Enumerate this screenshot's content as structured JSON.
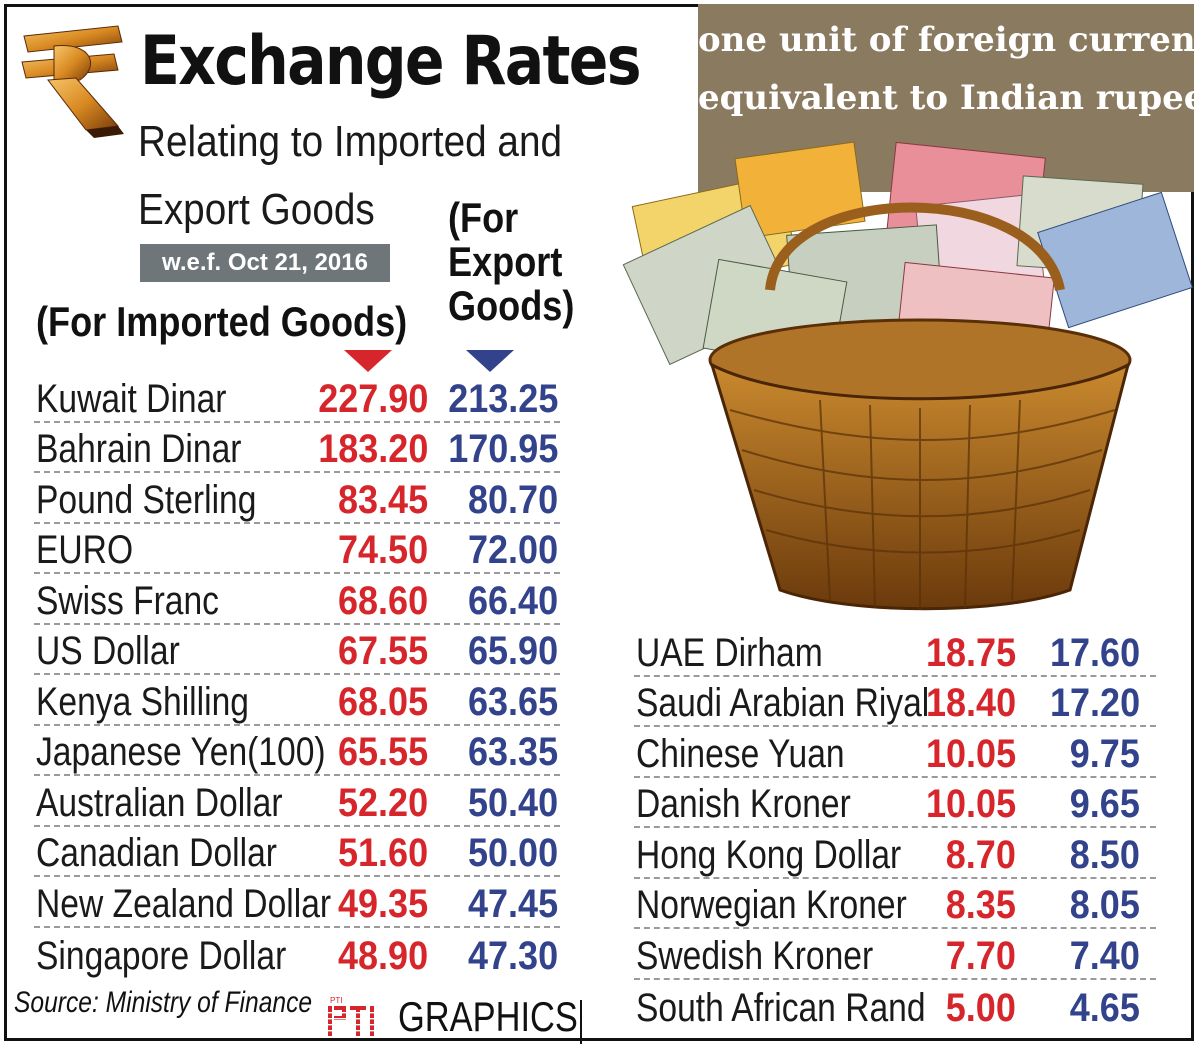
{
  "header": {
    "title": "Exchange Rates",
    "subtitle_line1": "Relating to Imported and",
    "subtitle_line2": "Export Goods",
    "effective_date": "w.e.f. Oct 21, 2016",
    "imported_label": "(For Imported Goods)",
    "export_label_line1": "(For",
    "export_label_line2": "Export",
    "export_label_line3": "Goods)"
  },
  "info_box": {
    "line1": "one unit of foreign currency",
    "line2": "equivalent to Indian rupees"
  },
  "colors": {
    "imported": "#d7262b",
    "export": "#32438c",
    "info_box_bg": "#8a7a60",
    "date_badge_bg": "#6f7679"
  },
  "icons": {
    "logo": "rupee-symbol-icon",
    "illustration": "currency-basket-icon",
    "imported_marker": "red-triangle-icon",
    "export_marker": "blue-triangle-icon"
  },
  "rates_left": [
    {
      "currency": "Kuwait Dinar",
      "imported": "227.90",
      "export": "213.25"
    },
    {
      "currency": "Bahrain Dinar",
      "imported": "183.20",
      "export": "170.95"
    },
    {
      "currency": "Pound Sterling",
      "imported": "83.45",
      "export": "80.70"
    },
    {
      "currency": "EURO",
      "imported": "74.50",
      "export": "72.00"
    },
    {
      "currency": "Swiss Franc",
      "imported": "68.60",
      "export": "66.40"
    },
    {
      "currency": "US Dollar",
      "imported": "67.55",
      "export": "65.90"
    },
    {
      "currency": "Kenya Shilling",
      "imported": "68.05",
      "export": "63.65"
    },
    {
      "currency": "Japanese Yen(100)",
      "imported": "65.55",
      "export": "63.35"
    },
    {
      "currency": "Australian Dollar",
      "imported": "52.20",
      "export": "50.40"
    },
    {
      "currency": "Canadian Dollar",
      "imported": "51.60",
      "export": "50.00"
    },
    {
      "currency": "New Zealand Dollar",
      "imported": "49.35",
      "export": "47.45"
    },
    {
      "currency": "Singapore Dollar",
      "imported": "48.90",
      "export": "47.30"
    }
  ],
  "rates_right": [
    {
      "currency": "UAE Dirham",
      "imported": "18.75",
      "export": "17.60"
    },
    {
      "currency": "Saudi Arabian Riyal",
      "imported": "18.40",
      "export": "17.20"
    },
    {
      "currency": "Chinese Yuan",
      "imported": "10.05",
      "export": "9.75"
    },
    {
      "currency": "Danish Kroner",
      "imported": "10.05",
      "export": "9.65"
    },
    {
      "currency": "Hong Kong Dollar",
      "imported": "8.70",
      "export": "8.50"
    },
    {
      "currency": "Norwegian Kroner",
      "imported": "8.35",
      "export": "8.05"
    },
    {
      "currency": "Swedish Kroner",
      "imported": "7.70",
      "export": "7.40"
    },
    {
      "currency": "South African Rand",
      "imported": "5.00",
      "export": "4.65"
    }
  ],
  "footer": {
    "source": "Source: Ministry of Finance",
    "credit": "GRAPHICS",
    "credit_logo": "PTI"
  }
}
